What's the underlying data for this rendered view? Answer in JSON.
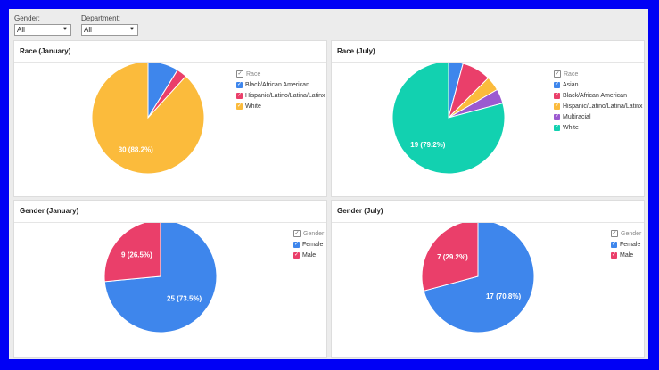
{
  "filters": {
    "gender": {
      "label": "Gender:",
      "value": "All"
    },
    "department": {
      "label": "Department:",
      "value": "All"
    }
  },
  "panels": {
    "race_jan": {
      "title": "Race (January)"
    },
    "race_jul": {
      "title": "Race (July)"
    },
    "gender_jan": {
      "title": "Gender (January)"
    },
    "gender_jul": {
      "title": "Gender (July)"
    }
  },
  "chart_data": [
    {
      "id": "race_jan",
      "type": "pie",
      "title": "Race (January)",
      "legend_title": "Race",
      "categories": [
        "Black/African American",
        "Hispanic/Latino/Latina/Latinx",
        "White"
      ],
      "values": [
        3,
        1,
        30
      ],
      "colors": [
        "#3e86ec",
        "#ea3f6a",
        "#fbbb3c"
      ],
      "data_labels": [
        "",
        "",
        "30 (88.2%)"
      ]
    },
    {
      "id": "race_jul",
      "type": "pie",
      "title": "Race (July)",
      "legend_title": "Race",
      "categories": [
        "Asian",
        "Black/African American",
        "Hispanic/Latino/Latina/Latinx",
        "Multiracial",
        "White"
      ],
      "values": [
        1,
        2,
        1,
        1,
        19
      ],
      "colors": [
        "#3e86ec",
        "#ea3f6a",
        "#fbbb3c",
        "#9b59d0",
        "#12d1b0"
      ],
      "data_labels": [
        "",
        "",
        "",
        "",
        "19 (79.2%)"
      ]
    },
    {
      "id": "gender_jan",
      "type": "pie",
      "title": "Gender (January)",
      "legend_title": "Gender",
      "categories": [
        "Female",
        "Male"
      ],
      "values": [
        25,
        9
      ],
      "colors": [
        "#3e86ec",
        "#ea3f6a"
      ],
      "data_labels": [
        "25 (73.5%)",
        "9 (26.5%)"
      ]
    },
    {
      "id": "gender_jul",
      "type": "pie",
      "title": "Gender (July)",
      "legend_title": "Gender",
      "categories": [
        "Female",
        "Male"
      ],
      "values": [
        17,
        7
      ],
      "colors": [
        "#3e86ec",
        "#ea3f6a"
      ],
      "data_labels": [
        "17 (70.8%)",
        "7 (29.2%)"
      ]
    }
  ]
}
